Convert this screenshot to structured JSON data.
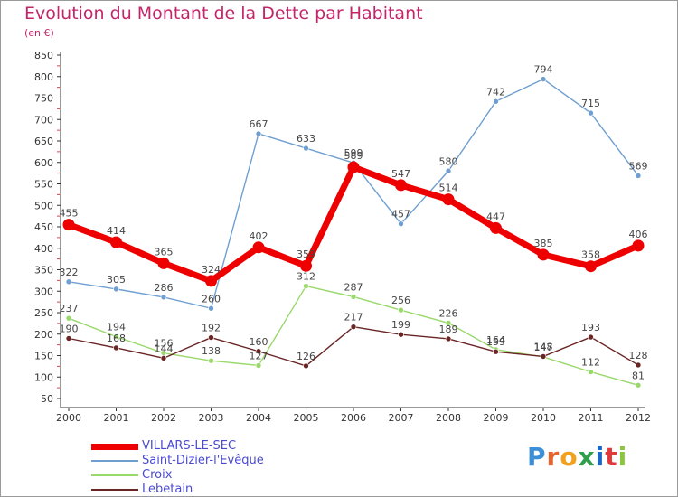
{
  "header": {
    "title": "Evolution du Montant de la Dette par Habitant",
    "subtitle": "(en €)"
  },
  "logo": {
    "text": "Proxiti",
    "letters": [
      "P",
      "r",
      "o",
      "x",
      "i",
      "t",
      "i"
    ],
    "colors": [
      "#3a8fd8",
      "#e8632b",
      "#f2a11f",
      "#2f9e4a",
      "#1c66c8",
      "#e23a3a",
      "#8cc63f"
    ]
  },
  "chart_data": {
    "type": "line",
    "title": "Evolution du Montant de la Dette par Habitant",
    "subtitle": "(en €)",
    "xlabel": "",
    "ylabel": "",
    "x": [
      "2000",
      "2001",
      "2002",
      "2003",
      "2004",
      "2005",
      "2006",
      "2007",
      "2008",
      "2009",
      "2010",
      "2011",
      "2012"
    ],
    "yticks": [
      "50",
      "100",
      "150",
      "200",
      "250",
      "300",
      "350",
      "400",
      "450",
      "500",
      "550",
      "600",
      "650",
      "700",
      "750",
      "800",
      "850"
    ],
    "ylim": [
      50,
      850
    ],
    "grid": false,
    "legend_position": "bottom-left",
    "series": [
      {
        "name": "VILLARS-LE-SEC",
        "color": "#ee0000",
        "values": [
          455,
          414,
          365,
          324,
          402,
          359,
          589,
          547,
          514,
          447,
          385,
          358,
          406
        ],
        "labels": [
          "455",
          "414",
          "365",
          "324",
          "402",
          "359",
          "589",
          "547",
          "514",
          "447",
          "385",
          "358",
          "406"
        ]
      },
      {
        "name": "Saint-Dizier-l'Evêque",
        "color": "#6f9fd0",
        "values": [
          322,
          305,
          286,
          260,
          667,
          633,
          599,
          457,
          580,
          742,
          794,
          715,
          569
        ],
        "labels": [
          "322",
          "305",
          "286",
          "260",
          "667",
          "633",
          "599",
          "457",
          "580",
          "742",
          "794",
          "715",
          "569"
        ]
      },
      {
        "name": "Croix",
        "color": "#99d86a",
        "values": [
          237,
          194,
          156,
          138,
          127,
          312,
          287,
          256,
          226,
          164,
          147,
          112,
          81
        ],
        "labels": [
          "237",
          "194",
          "156",
          "138",
          "127",
          "312",
          "287",
          "256",
          "226",
          "164",
          "147",
          "112",
          "81"
        ]
      },
      {
        "name": "Lebetain",
        "color": "#6a2525",
        "values": [
          190,
          168,
          144,
          192,
          160,
          126,
          217,
          199,
          189,
          159,
          148,
          193,
          128
        ],
        "labels": [
          "190",
          "168",
          "144",
          "192",
          "160",
          "126",
          "217",
          "199",
          "189",
          "159",
          "148",
          "193",
          "128"
        ]
      }
    ]
  }
}
